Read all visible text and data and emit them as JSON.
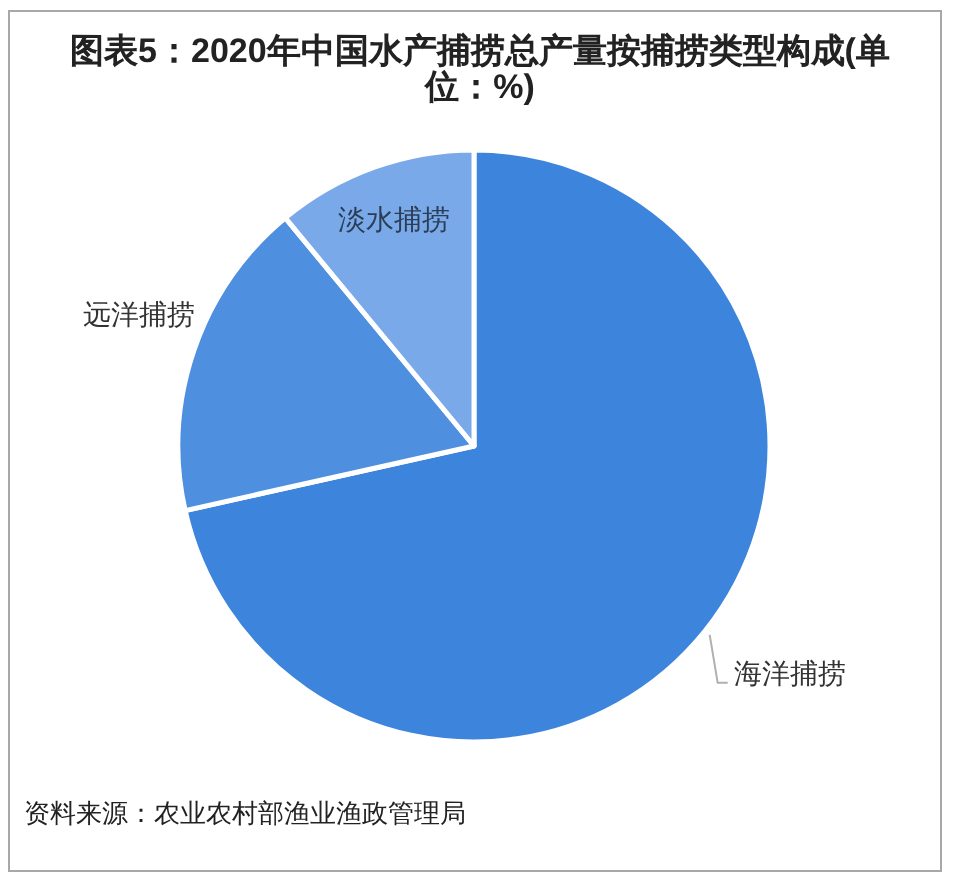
{
  "chart_data": {
    "type": "pie",
    "title": "图表5：2020年中国水产捕捞总产量按捕捞类型构成(单位：%)",
    "categories": [
      "海洋捕捞",
      "远洋捕捞",
      "淡水捕捞"
    ],
    "values": [
      71.5,
      17.5,
      11.0
    ],
    "colors": [
      "#3d84dc",
      "#4e8fe0",
      "#79a9e9"
    ],
    "annotations": [
      "资料来源：农业农村部渔业渔政管理局"
    ]
  }
}
